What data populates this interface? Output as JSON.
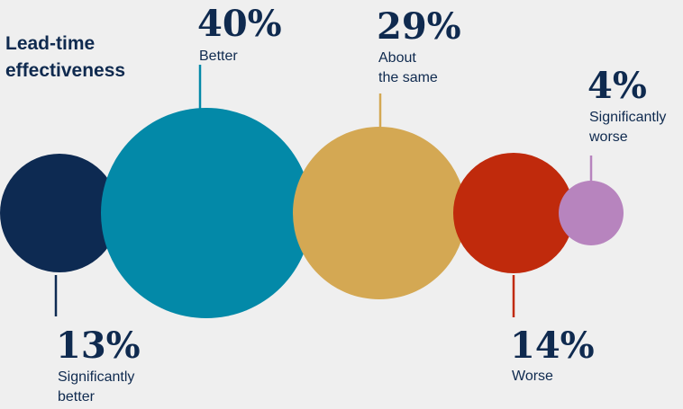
{
  "chart_data": {
    "type": "bubble",
    "title_lines": [
      "Lead-time",
      "effectiveness"
    ],
    "series": [
      {
        "category": "significantly-better",
        "value": 13,
        "value_label": "13%",
        "label_lines": [
          "Significantly",
          "better"
        ],
        "color": "#0d2a52"
      },
      {
        "category": "better",
        "value": 40,
        "value_label": "40%",
        "label_lines": [
          "Better"
        ],
        "color": "#0389a8"
      },
      {
        "category": "about-the-same",
        "value": 29,
        "value_label": "29%",
        "label_lines": [
          "About",
          "the same"
        ],
        "color": "#d4a853"
      },
      {
        "category": "worse",
        "value": 14,
        "value_label": "14%",
        "label_lines": [
          "Worse"
        ],
        "color": "#c02a0c"
      },
      {
        "category": "significantly-worse",
        "value": 4,
        "value_label": "4%",
        "label_lines": [
          "Significantly",
          "worse"
        ],
        "color": "#b784be"
      }
    ]
  }
}
